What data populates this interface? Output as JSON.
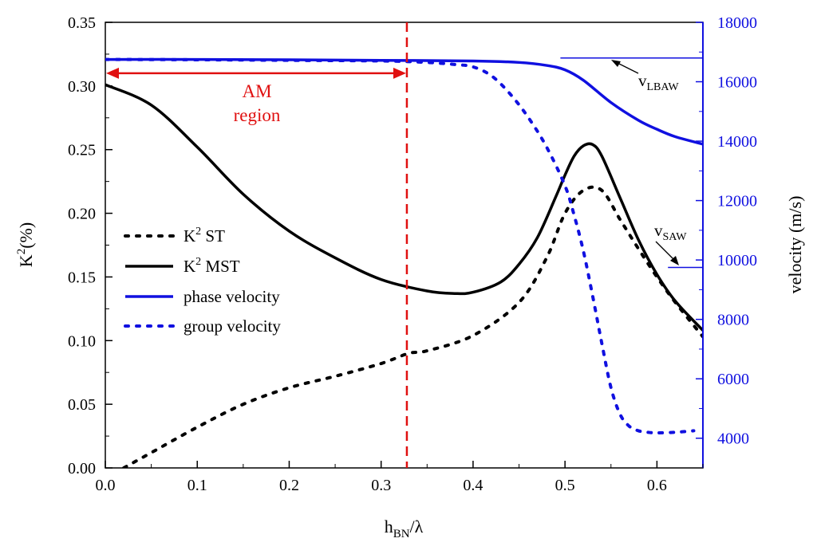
{
  "chart_data": {
    "type": "line",
    "xlabel_main": "h",
    "xlabel_sub": "BN",
    "xlabel_tail": "/λ",
    "ylabel_left_main": "K",
    "ylabel_left_sup": "2",
    "ylabel_left_tail": "(%)",
    "ylabel_right": "velocity (m/s)",
    "xlim": [
      0,
      0.65
    ],
    "ylim_left": [
      0,
      0.35
    ],
    "ylim_right": [
      3000,
      18000
    ],
    "x_ticks": [
      "0.0",
      "0.1",
      "0.2",
      "0.3",
      "0.4",
      "0.5",
      "0.6"
    ],
    "y_ticks_left": [
      "0.00",
      "0.05",
      "0.10",
      "0.15",
      "0.20",
      "0.25",
      "0.30",
      "0.35"
    ],
    "y_ticks_right": [
      "4000",
      "6000",
      "8000",
      "10000",
      "12000",
      "14000",
      "16000",
      "18000"
    ],
    "colors": {
      "left_axis": "#000000",
      "right_axis": "#1010e0",
      "annotation": "#e01010",
      "k2": "#000000",
      "velocity": "#1010e0"
    },
    "series": [
      {
        "name": "K² ST",
        "legend_main": "K",
        "legend_sup": "2",
        "legend_tail": " ST",
        "axis": "left",
        "style": "dotted",
        "color": "#000000",
        "x": [
          0.02,
          0.05,
          0.1,
          0.15,
          0.2,
          0.25,
          0.3,
          0.33,
          0.35,
          0.4,
          0.45,
          0.48,
          0.5,
          0.52,
          0.54,
          0.56,
          0.58,
          0.6,
          0.62,
          0.65
        ],
        "y": [
          0.0,
          0.012,
          0.032,
          0.05,
          0.063,
          0.072,
          0.082,
          0.09,
          0.092,
          0.104,
          0.13,
          0.165,
          0.2,
          0.218,
          0.218,
          0.195,
          0.172,
          0.15,
          0.13,
          0.103
        ]
      },
      {
        "name": "K² MST",
        "legend_main": "K",
        "legend_sup": "2",
        "legend_tail": " MST",
        "axis": "left",
        "style": "solid",
        "color": "#000000",
        "x": [
          0.0,
          0.05,
          0.1,
          0.15,
          0.2,
          0.25,
          0.3,
          0.35,
          0.38,
          0.4,
          0.43,
          0.45,
          0.47,
          0.49,
          0.5,
          0.51,
          0.52,
          0.53,
          0.54,
          0.56,
          0.58,
          0.6,
          0.62,
          0.65
        ],
        "y": [
          0.301,
          0.285,
          0.252,
          0.215,
          0.186,
          0.165,
          0.148,
          0.139,
          0.137,
          0.138,
          0.146,
          0.16,
          0.181,
          0.213,
          0.23,
          0.245,
          0.253,
          0.254,
          0.245,
          0.212,
          0.179,
          0.152,
          0.131,
          0.108
        ]
      },
      {
        "name": "phase velocity",
        "legend_main": "phase velocity",
        "axis": "right",
        "style": "solid",
        "color": "#1010e0",
        "x": [
          0.0,
          0.1,
          0.2,
          0.3,
          0.4,
          0.45,
          0.48,
          0.5,
          0.52,
          0.55,
          0.58,
          0.6,
          0.62,
          0.65
        ],
        "y": [
          16750,
          16750,
          16740,
          16720,
          16700,
          16650,
          16550,
          16400,
          16050,
          15300,
          14700,
          14400,
          14150,
          13900
        ]
      },
      {
        "name": "group velocity",
        "legend_main": "group velocity",
        "axis": "right",
        "style": "dotted",
        "color": "#1010e0",
        "x": [
          0.0,
          0.1,
          0.2,
          0.3,
          0.35,
          0.38,
          0.4,
          0.42,
          0.44,
          0.46,
          0.48,
          0.5,
          0.51,
          0.52,
          0.53,
          0.54,
          0.55,
          0.56,
          0.57,
          0.58,
          0.59,
          0.6,
          0.62,
          0.64
        ],
        "y": [
          16750,
          16740,
          16720,
          16700,
          16650,
          16580,
          16500,
          16200,
          15600,
          14800,
          13800,
          12500,
          11500,
          10300,
          8800,
          7200,
          5700,
          4800,
          4400,
          4250,
          4200,
          4180,
          4200,
          4250
        ]
      }
    ],
    "reference_lines": [
      {
        "label_main": "v",
        "label_sub": "LBAW",
        "axis": "right",
        "value": 16800,
        "x_start": 0.495,
        "x_end": 0.65
      },
      {
        "label_main": "v",
        "label_sub": "SAW",
        "axis": "right",
        "value": 9750,
        "x_start": 0.612,
        "x_end": 0.65
      }
    ],
    "am_region": {
      "label_line1": "AM",
      "label_line2": "region",
      "x_end": 0.328,
      "y_arrow": 0.31
    }
  }
}
